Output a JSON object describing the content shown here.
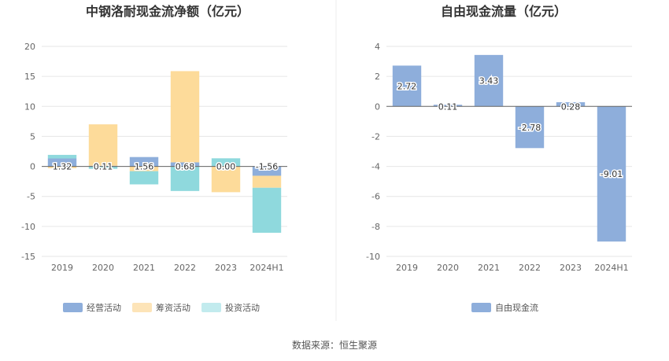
{
  "chart_data": [
    {
      "type": "bar",
      "stacked": true,
      "title": "中钢洛耐现金流净额（亿元）",
      "categories": [
        "2019",
        "2020",
        "2021",
        "2022",
        "2023",
        "2024H1"
      ],
      "ylim": [
        -15,
        20
      ],
      "yticks": [
        20,
        15,
        10,
        5,
        0,
        -5,
        -10,
        -15
      ],
      "series": [
        {
          "name": "经营活动",
          "color": "#8eaedb",
          "values": [
            1.32,
            0.11,
            1.56,
            0.68,
            0.0,
            -1.56
          ],
          "labels": [
            "1.32",
            "0.11",
            "1.56",
            "0.68",
            "0.00",
            "-1.56"
          ]
        },
        {
          "name": "筹资活动",
          "color": "#fddb9a",
          "values": [
            -0.3,
            6.9,
            -0.8,
            15.2,
            -4.3,
            -2.0
          ]
        },
        {
          "name": "投资活动",
          "color": "#8fd9dd",
          "values": [
            0.6,
            -0.4,
            -2.2,
            -4.1,
            1.35,
            -7.5
          ]
        }
      ],
      "legend_position": "bottom"
    },
    {
      "type": "bar",
      "title": "自由现金流量（亿元）",
      "categories": [
        "2019",
        "2020",
        "2021",
        "2022",
        "2023",
        "2024H1"
      ],
      "ylim": [
        -10,
        4
      ],
      "yticks": [
        4,
        2,
        0,
        -2,
        -4,
        -6,
        -8,
        -10
      ],
      "series": [
        {
          "name": "自由现金流",
          "color": "#8eaedb",
          "values": [
            2.72,
            0.11,
            3.43,
            -2.78,
            0.28,
            -9.01
          ],
          "labels": [
            "2.72",
            "0.11",
            "3.43",
            "-2.78",
            "0.28",
            "-9.01"
          ]
        }
      ],
      "legend_position": "bottom"
    }
  ],
  "source": "数据来源：恒生聚源"
}
